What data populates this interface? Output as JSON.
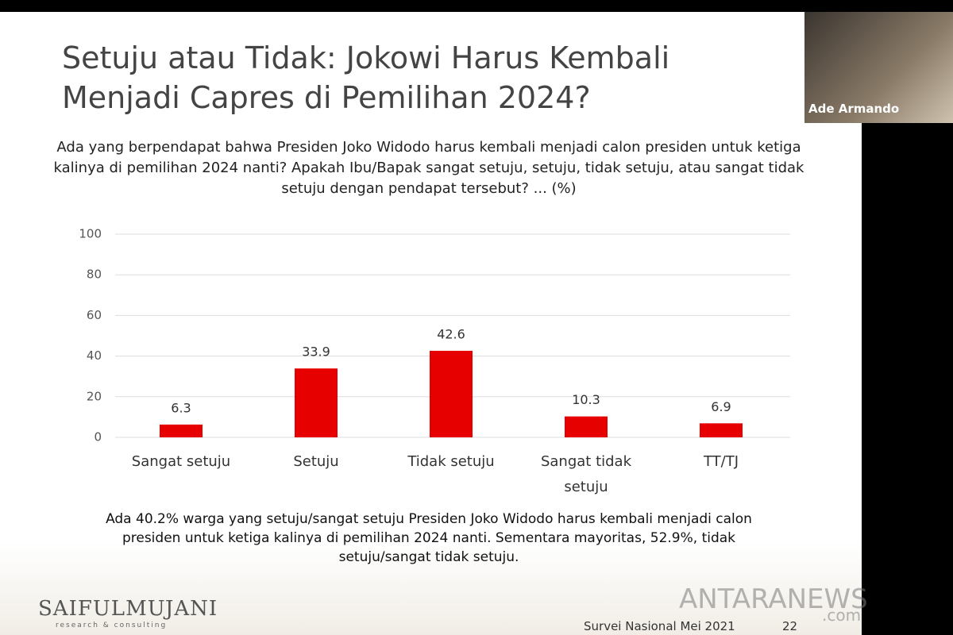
{
  "slide_title": "Setuju atau Tidak: Jokowi Harus Kembali Menjadi Capres di Pemilihan 2024?",
  "question": "Ada yang berpendapat bahwa Presiden Joko Widodo harus kembali menjadi calon presiden untuk ketiga kalinya di pemilihan 2024 nanti? Apakah Ibu/Bapak sangat setuju, setuju, tidak setuju, atau sangat tidak setuju dengan pendapat tersebut? ... (%)",
  "chart_data": {
    "type": "bar",
    "categories": [
      "Sangat setuju",
      "Setuju",
      "Tidak setuju",
      "Sangat tidak setuju",
      "TT/TJ"
    ],
    "values": [
      6.3,
      33.9,
      42.6,
      10.3,
      6.9
    ],
    "color": "#e60000",
    "ylim": [
      0,
      100
    ],
    "yticks": [
      0,
      20,
      40,
      60,
      80,
      100
    ],
    "grid": true
  },
  "summary": "Ada 40.2% warga yang setuju/sangat setuju Presiden Joko Widodo harus kembali menjadi calon presiden untuk ketiga kalinya di pemilihan 2024 nanti. Sementara mayoritas, 52.9%, tidak setuju/sangat tidak setuju.",
  "logo": {
    "name": "SAIFULMUJANI",
    "tagline": "research & consulting"
  },
  "footer": {
    "survey": "Survei Nasional Mei 2021",
    "page": "22"
  },
  "participant": "Ade Armando",
  "watermark": {
    "brand": "ANTARANEWS",
    "domain": ".com"
  }
}
